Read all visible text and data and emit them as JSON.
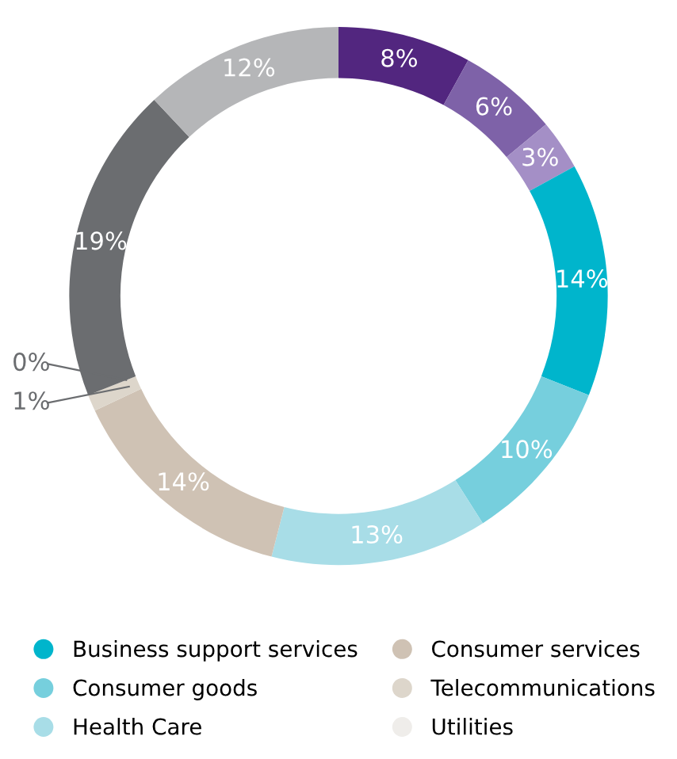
{
  "chart_data": {
    "type": "donut",
    "categories": [
      null,
      null,
      null,
      "Business support services",
      "Consumer goods",
      "Health Care",
      "Consumer services",
      "Telecommunications",
      "Utilities",
      null,
      null
    ],
    "values": [
      8,
      6,
      3,
      14,
      10,
      13,
      14,
      1,
      0,
      19,
      12
    ],
    "value_labels": [
      "8%",
      "6%",
      "3%",
      "14%",
      "10%",
      "13%",
      "14%",
      "1%",
      "0%",
      "19%",
      "12%"
    ],
    "colors": [
      "#52267f",
      "#7e62a8",
      "#a48fc6",
      "#00b5cc",
      "#76cfdd",
      "#a8dde7",
      "#cfc2b4",
      "#ddd6cb",
      "#efedea",
      "#6b6d70",
      "#b5b6b8"
    ],
    "legend": "bottom"
  }
}
